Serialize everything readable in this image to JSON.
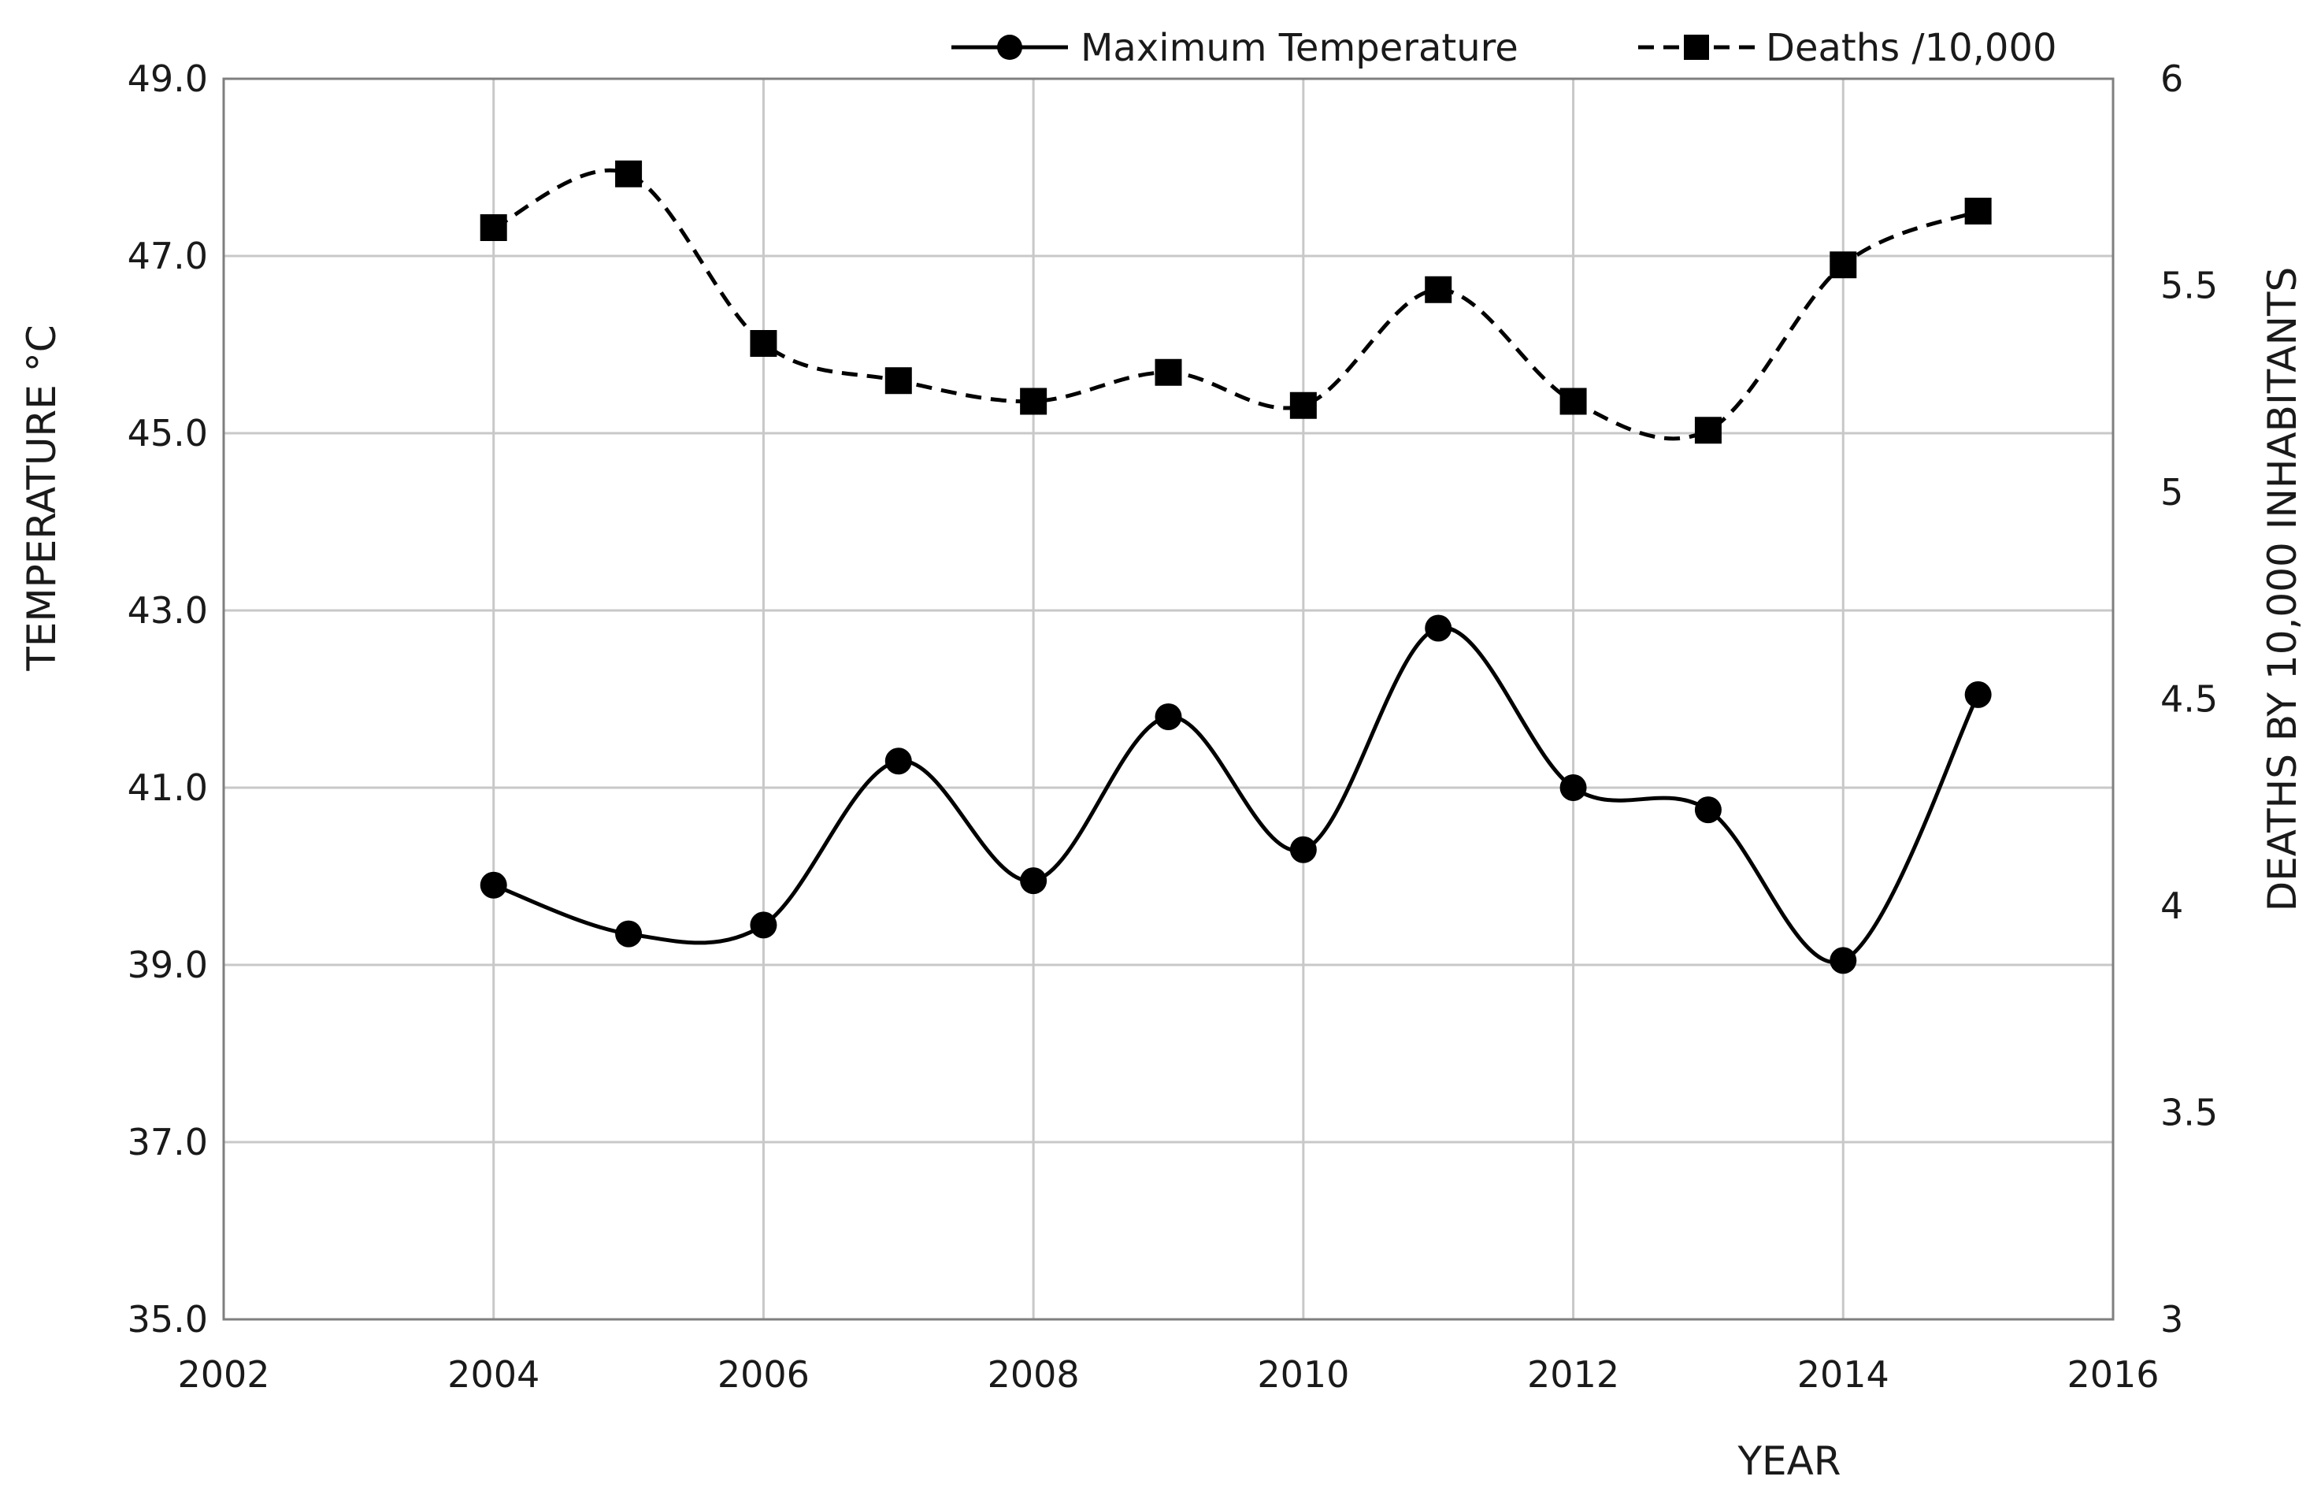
{
  "chart_data": {
    "type": "line",
    "title": "",
    "xlabel": "YEAR",
    "ylabel": "TEMPERATURE °C",
    "y2label": "DEATHS BY 10,000 INHABITANTS",
    "xlim": [
      2002,
      2016
    ],
    "ylim": [
      35.0,
      49.0
    ],
    "y2lim": [
      3,
      6
    ],
    "x_ticks": [
      2002,
      2004,
      2006,
      2008,
      2010,
      2012,
      2014,
      2016
    ],
    "x_tick_labels": [
      "2002",
      "2004",
      "2006",
      "2008",
      "2010",
      "2012",
      "2014",
      "2016"
    ],
    "y_ticks": [
      35,
      37,
      39,
      41,
      43,
      45,
      47,
      49
    ],
    "y_tick_labels": [
      "35.0",
      "37.0",
      "39.0",
      "41.0",
      "43.0",
      "45.0",
      "47.0",
      "49.0"
    ],
    "y2_ticks": [
      3,
      3.5,
      4,
      4.5,
      5,
      5.5,
      6
    ],
    "y2_tick_labels": [
      "3",
      "3.5",
      "4",
      "4.5",
      "5",
      "5.5",
      "6"
    ],
    "grid": true,
    "legend_position": "top-right",
    "x": [
      2004,
      2005,
      2006,
      2007,
      2008,
      2009,
      2010,
      2011,
      2012,
      2013,
      2014,
      2015
    ],
    "series": [
      {
        "name": "Maximum Temperature",
        "axis": "left",
        "marker": "circle",
        "line_style": "solid",
        "values": [
          39.9,
          39.35,
          39.45,
          41.3,
          39.95,
          41.8,
          40.3,
          42.8,
          41.0,
          40.75,
          39.05,
          42.05
        ]
      },
      {
        "name": "Deaths /10,000",
        "axis": "right",
        "marker": "square",
        "line_style": "dashed",
        "values": [
          5.64,
          5.77,
          5.36,
          5.27,
          5.22,
          5.29,
          5.21,
          5.49,
          5.22,
          5.15,
          5.55,
          5.68
        ]
      }
    ]
  }
}
